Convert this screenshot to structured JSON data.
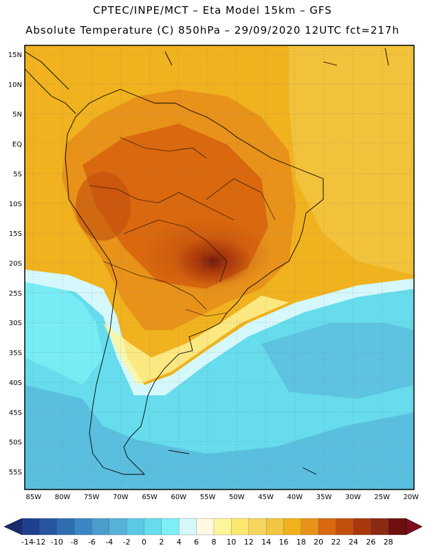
{
  "header": {
    "line1": "CPTEC/INPE/MCT –  Eta Model 15km – GFS",
    "line2": "Absolute Temperature (C) 850hPa – 29/09/2020 12UTC fct=217h"
  },
  "map": {
    "lat_labels": [
      "15N",
      "10N",
      "5N",
      "EQ",
      "5S",
      "10S",
      "15S",
      "20S",
      "25S",
      "30S",
      "35S",
      "40S",
      "45S",
      "50S",
      "55S"
    ],
    "lon_labels": [
      "85W",
      "80W",
      "75W",
      "70W",
      "65W",
      "60W",
      "55W",
      "50W",
      "45W",
      "40W",
      "35W",
      "30W",
      "25W",
      "20W"
    ],
    "lat_values": [
      15,
      10,
      5,
      0,
      -5,
      -10,
      -15,
      -20,
      -25,
      -30,
      -35,
      -40,
      -45,
      -50,
      -55
    ],
    "lon_values": [
      -85,
      -80,
      -75,
      -70,
      -65,
      -60,
      -55,
      -50,
      -45,
      -40,
      -35,
      -30,
      -25,
      -20
    ]
  },
  "colorbar": {
    "labels": [
      "-14",
      "-12",
      "-10",
      "-8",
      "-6",
      "-4",
      "-2",
      "0",
      "2",
      "4",
      "6",
      "8",
      "10",
      "12",
      "14",
      "16",
      "18",
      "20",
      "22",
      "24",
      "26",
      "28"
    ],
    "colors": [
      "#1f3f8f",
      "#2656a0",
      "#2e6fb2",
      "#3a86c2",
      "#4a9dcd",
      "#56b2d8",
      "#5cc9e4",
      "#66dcec",
      "#7cf0f6",
      "#d4f8fc",
      "#fff8e2",
      "#fff59a",
      "#fbe670",
      "#f7d660",
      "#f2c542",
      "#efb21a",
      "#e8921a",
      "#d9680e",
      "#c24f0e",
      "#a8380c",
      "#8a2a12",
      "#6e1010"
    ],
    "left_arrow_color": "#1a2a6c",
    "right_arrow_color": "#7a0d20"
  }
}
